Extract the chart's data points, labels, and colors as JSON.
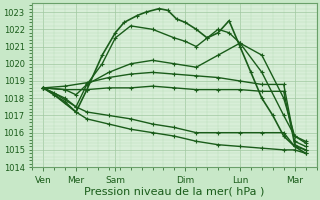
{
  "bg_color": "#c8e8c8",
  "plot_bg_color": "#d8eed8",
  "grid_color_major": "#a0c8a0",
  "grid_color_minor": "#b8deb8",
  "line_color": "#1a5c1a",
  "xlabel": "Pression niveau de la mer( hPa )",
  "xlabel_fontsize": 8,
  "ylim": [
    1014,
    1023.5
  ],
  "yticks": [
    1014,
    1015,
    1016,
    1017,
    1018,
    1019,
    1020,
    1021,
    1022,
    1023
  ],
  "xlim": [
    0,
    13
  ],
  "xtick_labels": [
    "Ven",
    "Mer",
    "Sam",
    "Dim",
    "Lun",
    "Mar"
  ],
  "xtick_positions": [
    0.5,
    2.0,
    3.8,
    7.0,
    9.5,
    12.0
  ],
  "series": [
    {
      "x": [
        0.5,
        1.0,
        2.0,
        2.5,
        3.2,
        3.8,
        4.2,
        4.8,
        5.2,
        5.8,
        6.2,
        6.6,
        7.0,
        7.5,
        8.0,
        8.5,
        9.0,
        9.5,
        10.0,
        10.5,
        11.0,
        11.5,
        12.0,
        12.5
      ],
      "y": [
        1018.6,
        1018.2,
        1017.2,
        1018.5,
        1020.5,
        1021.8,
        1022.4,
        1022.8,
        1023.0,
        1023.2,
        1023.1,
        1022.6,
        1022.4,
        1022.0,
        1021.5,
        1021.8,
        1022.5,
        1021.0,
        1019.5,
        1018.0,
        1017.0,
        1015.8,
        1015.2,
        1014.8
      ],
      "lw": 1.2
    },
    {
      "x": [
        0.5,
        1.0,
        2.0,
        2.5,
        3.2,
        3.8,
        4.5,
        5.5,
        6.5,
        7.0,
        7.5,
        8.0,
        8.5,
        9.0,
        9.5,
        10.5,
        11.5,
        12.0,
        12.5
      ],
      "y": [
        1018.6,
        1018.3,
        1017.5,
        1018.8,
        1020.0,
        1021.5,
        1022.2,
        1022.0,
        1021.5,
        1021.3,
        1021.0,
        1021.5,
        1022.0,
        1021.8,
        1021.2,
        1019.5,
        1017.0,
        1015.8,
        1015.5
      ],
      "lw": 1.0
    },
    {
      "x": [
        0.5,
        1.5,
        2.0,
        2.5,
        3.5,
        4.5,
        5.5,
        6.5,
        7.5,
        8.5,
        9.5,
        10.5,
        11.5,
        12.0,
        12.5
      ],
      "y": [
        1018.6,
        1018.5,
        1018.2,
        1018.8,
        1019.5,
        1020.0,
        1020.2,
        1020.0,
        1019.8,
        1020.5,
        1021.2,
        1020.5,
        1018.0,
        1015.8,
        1015.4
      ],
      "lw": 1.0
    },
    {
      "x": [
        0.5,
        1.5,
        2.5,
        3.5,
        4.5,
        5.5,
        6.5,
        7.5,
        8.5,
        9.5,
        10.5,
        11.5,
        12.0,
        12.5
      ],
      "y": [
        1018.6,
        1018.7,
        1018.9,
        1019.2,
        1019.4,
        1019.5,
        1019.4,
        1019.3,
        1019.2,
        1019.0,
        1018.8,
        1018.8,
        1015.5,
        1015.2
      ],
      "lw": 1.0
    },
    {
      "x": [
        0.5,
        1.5,
        2.5,
        3.5,
        4.5,
        5.5,
        6.5,
        7.5,
        8.5,
        9.5,
        10.5,
        11.5,
        12.0,
        12.5
      ],
      "y": [
        1018.6,
        1018.5,
        1018.5,
        1018.6,
        1018.6,
        1018.7,
        1018.6,
        1018.5,
        1018.5,
        1018.5,
        1018.4,
        1018.4,
        1015.3,
        1015.0
      ],
      "lw": 1.0
    },
    {
      "x": [
        0.5,
        1.5,
        2.0,
        2.5,
        3.5,
        4.5,
        5.5,
        6.5,
        7.5,
        8.5,
        9.5,
        10.5,
        11.5,
        12.0,
        12.5
      ],
      "y": [
        1018.6,
        1018.0,
        1017.5,
        1017.2,
        1017.0,
        1016.8,
        1016.5,
        1016.3,
        1016.0,
        1016.0,
        1016.0,
        1016.0,
        1016.0,
        1015.2,
        1015.0
      ],
      "lw": 1.0
    },
    {
      "x": [
        0.5,
        1.5,
        2.0,
        2.5,
        3.5,
        4.5,
        5.5,
        6.5,
        7.5,
        8.5,
        9.5,
        10.5,
        11.5,
        12.0,
        12.5
      ],
      "y": [
        1018.6,
        1017.8,
        1017.2,
        1016.8,
        1016.5,
        1016.2,
        1016.0,
        1015.8,
        1015.5,
        1015.3,
        1015.2,
        1015.1,
        1015.0,
        1015.0,
        1014.8
      ],
      "lw": 1.0
    }
  ]
}
